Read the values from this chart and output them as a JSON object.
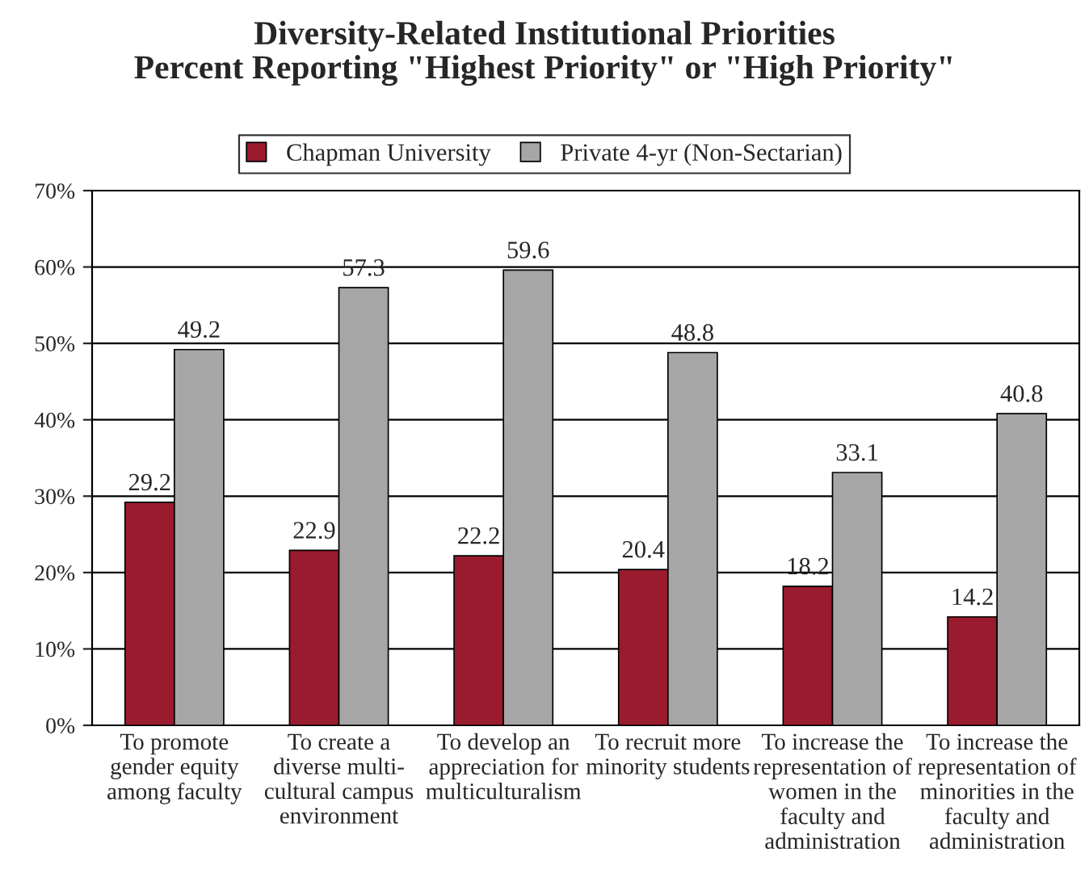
{
  "chart_data": {
    "type": "bar",
    "title": "Diversity-Related Institutional Priorities\nPercent Reporting \"Highest Priority\" or \"High Priority\"",
    "categories": [
      "To promote\ngender equity\namong faculty",
      "To create a\ndiverse multi-\ncultural campus\nenvironment",
      "To develop an\nappreciation for\nmulticulturalism",
      "To recruit more\nminority students",
      "To increase the\nrepresentation of\nwomen in the\nfaculty and\nadministration",
      "To increase the\nrepresentation of\nminorities in the\nfaculty and\nadministration"
    ],
    "series": [
      {
        "name": "Chapman University",
        "color": "#9b1b2e",
        "values": [
          29.2,
          22.9,
          22.2,
          20.4,
          18.2,
          14.2
        ]
      },
      {
        "name": "Private 4-yr (Non-Sectarian)",
        "color": "#a6a6a6",
        "values": [
          49.2,
          57.3,
          59.6,
          48.8,
          33.1,
          40.8
        ]
      }
    ],
    "ylim": [
      0,
      70
    ],
    "yticks": [
      {
        "value": 0,
        "label": "0%"
      },
      {
        "value": 10,
        "label": "10%"
      },
      {
        "value": 20,
        "label": "20%"
      },
      {
        "value": 30,
        "label": "30%"
      },
      {
        "value": 40,
        "label": "40%"
      },
      {
        "value": 50,
        "label": "50%"
      },
      {
        "value": 60,
        "label": "60%"
      },
      {
        "value": 70,
        "label": "70%"
      }
    ],
    "grid": "y",
    "legend": "top",
    "data_labels": true
  }
}
